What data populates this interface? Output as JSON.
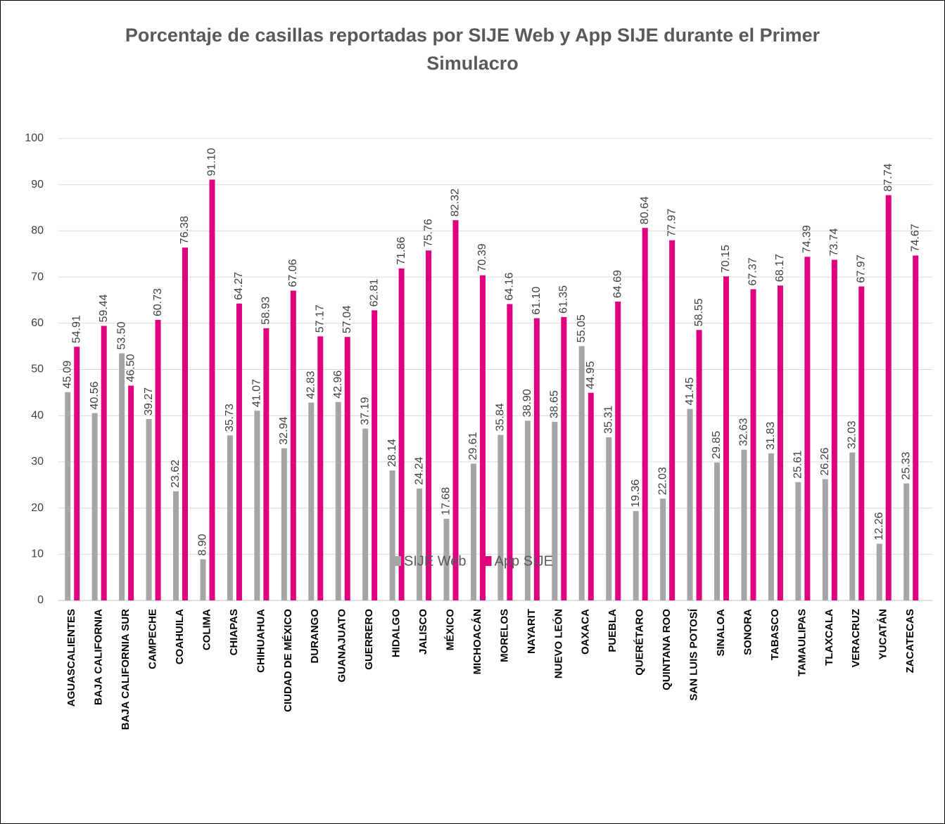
{
  "chart_data": {
    "type": "bar",
    "title": "Porcentaje de casillas reportadas por SIJE Web y App SIJE durante el Primer Simulacro",
    "categories": [
      "AGUASCALIENTES",
      "BAJA CALIFORNIA",
      "BAJA CALIFORNIA SUR",
      "CAMPECHE",
      "COAHUILA",
      "COLIMA",
      "CHIAPAS",
      "CHIHUAHUA",
      "CIUDAD DE MÉXICO",
      "DURANGO",
      "GUANAJUATO",
      "GUERRERO",
      "HIDALGO",
      "JALISCO",
      "MÉXICO",
      "MICHOACÁN",
      "MORELOS",
      "NAYARIT",
      "NUEVO LEÓN",
      "OAXACA",
      "PUEBLA",
      "QUERÉTARO",
      "QUINTANA ROO",
      "SAN LUIS POTOSÍ",
      "SINALOA",
      "SONORA",
      "TABASCO",
      "TAMAULIPAS",
      "TLAXCALA",
      "VERACRUZ",
      "YUCATÁN",
      "ZACATECAS"
    ],
    "series": [
      {
        "name": "SIJE Web",
        "color": "#a5a5a5",
        "values": [
          45.09,
          40.56,
          53.5,
          39.27,
          23.62,
          8.9,
          35.73,
          41.07,
          32.94,
          42.83,
          42.96,
          37.19,
          28.14,
          24.24,
          17.68,
          29.61,
          35.84,
          38.9,
          38.65,
          55.05,
          35.31,
          19.36,
          22.03,
          41.45,
          29.85,
          32.63,
          31.83,
          25.61,
          26.26,
          32.03,
          12.26,
          25.33
        ],
        "value_labels": [
          "45.09",
          "40.56",
          "53.50",
          "39.27",
          "23.62",
          "8.90",
          "35.73",
          "41.07",
          "32.94",
          "42.83",
          "42.96",
          "37.19",
          "28.14",
          "24.24",
          "17.68",
          "29.61",
          "35.84",
          "38.90",
          "38.65",
          "55.05",
          "35.31",
          "19.36",
          "22.03",
          "41.45",
          "29.85",
          "32.63",
          "31.83",
          "25.61",
          "26.26",
          "32.03",
          "12.26",
          "25.33"
        ]
      },
      {
        "name": "App SIJE",
        "color": "#e0007f",
        "values": [
          54.91,
          59.44,
          46.5,
          60.73,
          76.38,
          91.1,
          64.27,
          58.93,
          67.06,
          57.17,
          57.04,
          62.81,
          71.86,
          75.76,
          82.32,
          70.39,
          64.16,
          61.1,
          61.35,
          44.95,
          64.69,
          80.64,
          77.97,
          58.55,
          70.15,
          67.37,
          68.17,
          74.39,
          73.74,
          67.97,
          87.74,
          74.67
        ],
        "value_labels": [
          "54.91",
          "59.44",
          "46.50",
          "60.73",
          "76.38",
          "91.10",
          "64.27",
          "58.93",
          "67.06",
          "57.17",
          "57.04",
          "62.81",
          "71.86",
          "75.76",
          "82.32",
          "70.39",
          "64.16",
          "61.10",
          "61.35",
          "44.95",
          "64.69",
          "80.64",
          "77.97",
          "58.55",
          "70.15",
          "67.37",
          "68.17",
          "74.39",
          "73.74",
          "67.97",
          "87.74",
          "74.67"
        ]
      }
    ],
    "ylim": [
      0,
      100
    ],
    "yticks": [
      0,
      10,
      20,
      30,
      40,
      50,
      60,
      70,
      80,
      90,
      100
    ],
    "grid": true,
    "legend": "bottom"
  }
}
